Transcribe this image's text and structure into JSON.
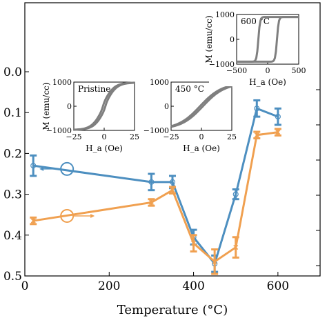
{
  "chart_data": {
    "type": "line",
    "xlabel": "Temperature (°C)",
    "x_ticks": [
      0,
      200,
      400,
      600
    ],
    "xlim": [
      0,
      700
    ],
    "left_axis": {
      "ylim": [
        -0.5,
        0.0
      ],
      "tick_labels": [
        "0.0",
        "0.1",
        "0.2",
        "0.3",
        "0.4",
        "0.5"
      ],
      "tick_values": [
        0.0,
        -0.1,
        -0.2,
        -0.3,
        -0.4,
        -0.5
      ]
    },
    "right_axis": {
      "tick_count": 6
    },
    "series": [
      {
        "color": "#4d8fc0",
        "marker": "open-circle",
        "axis": "left",
        "arrow": "left",
        "x": [
          20,
          300,
          350,
          400,
          450,
          500,
          550,
          600
        ],
        "y": [
          -0.23,
          -0.27,
          -0.27,
          -0.405,
          -0.47,
          -0.3,
          -0.09,
          -0.11
        ],
        "yerr": [
          0.025,
          0.02,
          0.015,
          0.018,
          0.02,
          0.012,
          0.02,
          0.02
        ]
      },
      {
        "color": "#f0a050",
        "marker": "x",
        "axis": "left",
        "arrow": "right",
        "x": [
          20,
          300,
          350,
          400,
          450,
          500,
          550,
          600
        ],
        "y": [
          -0.365,
          -0.32,
          -0.29,
          -0.42,
          -0.465,
          -0.43,
          -0.155,
          -0.148
        ],
        "yerr": [
          0.008,
          0.008,
          0.008,
          0.02,
          0.03,
          0.025,
          0.008,
          0.008
        ]
      }
    ],
    "insets": [
      {
        "label": "Pristine",
        "xlabel": "H_a (Oe)",
        "ylabel": "M (emu/cc)",
        "xlim": [
          -25,
          25
        ],
        "ylim": [
          -1000,
          1000
        ],
        "x_tick_labels": [
          "−25",
          "0",
          "25"
        ],
        "y_tick_labels": [
          "1000",
          "0",
          "−1000"
        ],
        "loop": "square-pristine"
      },
      {
        "label": "450 °C",
        "xlabel": "H_a (Oe)",
        "ylabel": "",
        "xlim": [
          -25,
          25
        ],
        "ylim": [
          -1000,
          1000
        ],
        "x_tick_labels": [
          "−25",
          "0",
          "25"
        ],
        "y_tick_labels": [
          "1000",
          "0",
          "−1000"
        ],
        "loop": "slanted"
      },
      {
        "label": "600 °C",
        "xlabel": "H_a (Oe)",
        "ylabel": "M (emu/cc)",
        "xlim": [
          -500,
          500
        ],
        "ylim": [
          -1000,
          1000
        ],
        "x_tick_labels": [
          "−500",
          "0",
          "500"
        ],
        "y_tick_labels": [
          "1000",
          "0",
          "−1000"
        ],
        "loop": "wide-square"
      }
    ]
  }
}
